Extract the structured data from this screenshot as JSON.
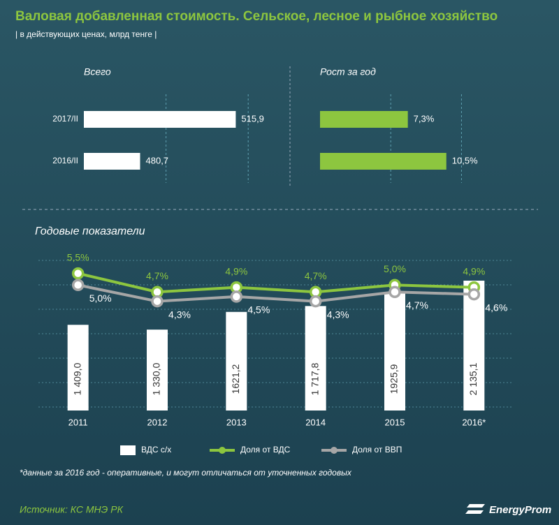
{
  "title": "Валовая добавленная стоимость. Сельское, лесное и рыбное хозяйство",
  "subtitle": "| в действующих ценах, млрд тенге |",
  "note": "*данные за 2016 год - оперативные, и могут отличаться от уточненных годовых",
  "source": "Источник: КС МНЭ РК",
  "logo": "EnergyProm",
  "chart_data": [
    {
      "type": "bar",
      "orientation": "horizontal",
      "title": "Всего",
      "categories": [
        "2017/II",
        "2016/II"
      ],
      "values": [
        515.9,
        480.7
      ],
      "value_labels": [
        "515,9",
        "480,7"
      ],
      "color": "#ffffff",
      "xlim": [
        460,
        532
      ]
    },
    {
      "type": "bar",
      "orientation": "horizontal",
      "title": "Рост за год",
      "categories": [
        "2017/II",
        "2016/II"
      ],
      "values": [
        7.3,
        10.5
      ],
      "value_labels": [
        "7,3%",
        "10,5%"
      ],
      "color": "#8dc63f",
      "xlim": [
        0,
        14
      ]
    },
    {
      "type": "combo",
      "title": "Годовые показатели",
      "categories": [
        "2011",
        "2012",
        "2013",
        "2014",
        "2015",
        "2016*"
      ],
      "ylim": [
        0,
        2560
      ],
      "y2lim": [
        -0.4,
        6.3
      ],
      "series": [
        {
          "name": "ВДС с/х",
          "type": "bar",
          "color": "#ffffff",
          "values": [
            1409.0,
            1330.0,
            1621.2,
            1717.8,
            1925.9,
            2135.1
          ],
          "value_labels": [
            "1 409,0",
            "1 330,0",
            "1621,2",
            "1 717,8",
            "1925,9",
            "2 135,1"
          ]
        },
        {
          "name": "Доля от ВДС",
          "type": "line",
          "axis": "y2",
          "color": "#8dc63f",
          "values": [
            5.5,
            4.7,
            4.9,
            4.7,
            5.0,
            4.9
          ],
          "value_labels": [
            "5,5%",
            "4,7%",
            "4,9%",
            "4,7%",
            "5,0%",
            "4,9%"
          ]
        },
        {
          "name": "Доля от ВВП",
          "type": "line",
          "axis": "y2",
          "color": "#a6a6a6",
          "values": [
            5.0,
            4.3,
            4.5,
            4.3,
            4.7,
            4.6
          ],
          "value_labels": [
            "5,0%",
            "4,3%",
            "4,5%",
            "4,3%",
            "4,7%",
            "4,6%"
          ]
        }
      ]
    }
  ]
}
